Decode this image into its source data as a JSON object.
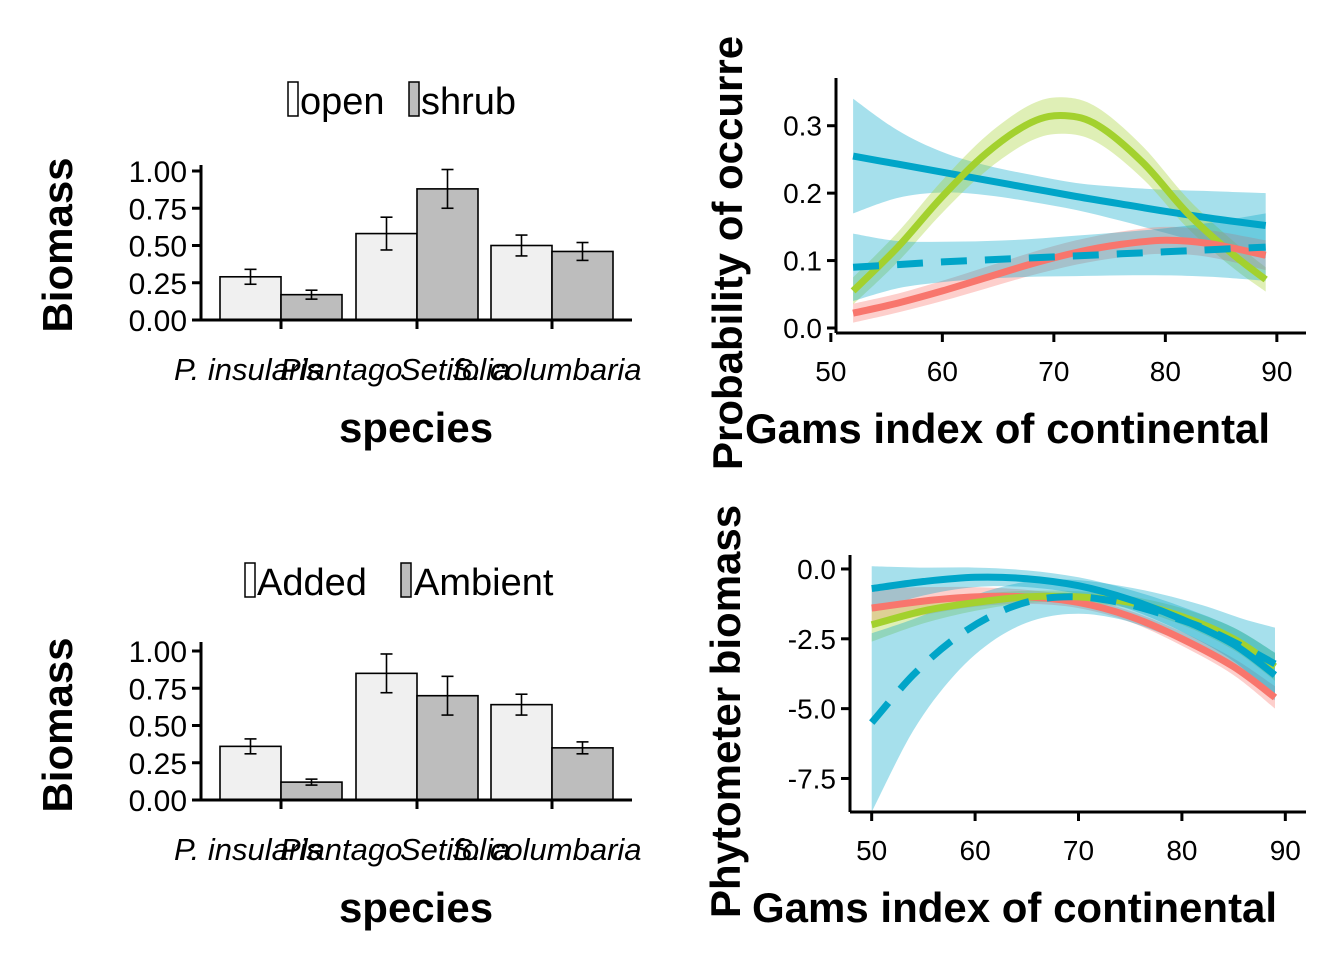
{
  "colors": {
    "added": "#f0f0f0",
    "ambient": "#bdbdbd",
    "red": "#F8766D",
    "green": "#A3D12E",
    "blue": "#00A5C8"
  },
  "chart_data": [
    {
      "id": "bar_top",
      "type": "bar",
      "legend": [
        "open",
        "shrub"
      ],
      "categories": [
        "P. insularis",
        "Plantago",
        "S. columbaria"
      ],
      "category_labels": [
        "P. insularis",
        "Plantago",
        "Setifolia",
        "S. columbaria"
      ],
      "series": [
        {
          "name": "open",
          "values": [
            0.29,
            0.58,
            0.5
          ],
          "errors": [
            0.05,
            0.11,
            0.07
          ]
        },
        {
          "name": "shrub",
          "values": [
            0.17,
            0.88,
            0.46
          ],
          "errors": [
            0.03,
            0.13,
            0.06
          ]
        }
      ],
      "xlabel": "species",
      "ylabel": "Biomass",
      "ylim": [
        0,
        1.0
      ],
      "yticks": [
        "0.00",
        "0.25",
        "0.50",
        "0.75",
        "1.00"
      ]
    },
    {
      "id": "bar_bottom",
      "type": "bar",
      "legend": [
        "Added",
        "Ambient"
      ],
      "categories": [
        "P. insularis",
        "Plantago",
        "S. columbaria"
      ],
      "category_labels": [
        "P. insularis",
        "Plantago",
        "Setifolia",
        "S. columbaria"
      ],
      "series": [
        {
          "name": "Added",
          "values": [
            0.36,
            0.85,
            0.64
          ],
          "errors": [
            0.05,
            0.13,
            0.07
          ]
        },
        {
          "name": "Ambient",
          "values": [
            0.12,
            0.7,
            0.35
          ],
          "errors": [
            0.02,
            0.13,
            0.04
          ]
        }
      ],
      "xlabel": "species",
      "ylabel": "Biomass",
      "ylim": [
        0,
        1.0
      ],
      "yticks": [
        "0.00",
        "0.25",
        "0.50",
        "0.75",
        "1.00"
      ]
    },
    {
      "id": "line_top",
      "type": "line",
      "xlabel": "Gams index of continental",
      "ylabel": "Probability of occurre",
      "xlim": [
        51,
        91
      ],
      "ylim": [
        0,
        0.35
      ],
      "xticks": [
        "50",
        "60",
        "70",
        "80",
        "90"
      ],
      "yticks": [
        "0.0",
        "0.1",
        "0.2",
        "0.3"
      ],
      "series": [
        {
          "color": "blue",
          "dash": false,
          "x": [
            52,
            56,
            60,
            64,
            68,
            72,
            76,
            80,
            84,
            89
          ],
          "y": [
            0.255,
            0.243,
            0.231,
            0.219,
            0.207,
            0.195,
            0.184,
            0.173,
            0.163,
            0.152
          ],
          "band": [
            0.085,
            0.05,
            0.03,
            0.022,
            0.02,
            0.02,
            0.025,
            0.032,
            0.04,
            0.048
          ]
        },
        {
          "color": "green",
          "dash": false,
          "x": [
            52,
            56,
            60,
            64,
            68,
            71,
            74,
            78,
            82,
            86,
            89
          ],
          "y": [
            0.055,
            0.12,
            0.195,
            0.26,
            0.305,
            0.315,
            0.3,
            0.245,
            0.17,
            0.11,
            0.072
          ],
          "band": [
            0.02,
            0.022,
            0.024,
            0.026,
            0.027,
            0.027,
            0.026,
            0.024,
            0.022,
            0.02,
            0.018
          ]
        },
        {
          "color": "red",
          "dash": false,
          "x": [
            52,
            56,
            60,
            64,
            68,
            72,
            76,
            80,
            84,
            89
          ],
          "y": [
            0.022,
            0.037,
            0.055,
            0.075,
            0.095,
            0.112,
            0.124,
            0.13,
            0.125,
            0.108
          ],
          "band": [
            0.014,
            0.014,
            0.015,
            0.016,
            0.017,
            0.018,
            0.019,
            0.02,
            0.02,
            0.022
          ]
        },
        {
          "color": "blue",
          "dash": true,
          "x": [
            52,
            56,
            60,
            64,
            68,
            72,
            76,
            80,
            84,
            89
          ],
          "y": [
            0.09,
            0.094,
            0.098,
            0.101,
            0.104,
            0.107,
            0.11,
            0.113,
            0.116,
            0.12
          ],
          "band": [
            0.05,
            0.035,
            0.03,
            0.028,
            0.028,
            0.03,
            0.032,
            0.035,
            0.04,
            0.05
          ]
        }
      ]
    },
    {
      "id": "line_bottom",
      "type": "line",
      "xlabel": "Gams index of continental",
      "ylabel": "Phytometer biomass",
      "xlim": [
        48,
        92
      ],
      "ylim": [
        -8.7,
        0.5
      ],
      "xticks": [
        "50",
        "60",
        "70",
        "80",
        "90"
      ],
      "yticks": [
        "0.0",
        "-2.5",
        "-5.0",
        "-7.5"
      ],
      "series": [
        {
          "color": "red",
          "dash": false,
          "x": [
            50,
            55,
            60,
            65,
            70,
            75,
            80,
            85,
            89
          ],
          "y": [
            -1.4,
            -1.15,
            -1.0,
            -1.0,
            -1.2,
            -1.7,
            -2.5,
            -3.5,
            -4.6
          ],
          "band": [
            0.7,
            0.5,
            0.35,
            0.25,
            0.2,
            0.2,
            0.25,
            0.3,
            0.4
          ]
        },
        {
          "color": "green",
          "dash": false,
          "x": [
            50,
            55,
            60,
            65,
            70,
            75,
            80,
            85,
            89
          ],
          "y": [
            -2.0,
            -1.5,
            -1.2,
            -1.0,
            -1.0,
            -1.2,
            -1.7,
            -2.5,
            -3.5
          ],
          "band": [
            0.6,
            0.45,
            0.3,
            0.22,
            0.2,
            0.22,
            0.3,
            0.4,
            0.5
          ]
        },
        {
          "color": "blue",
          "dash": false,
          "x": [
            50,
            55,
            60,
            65,
            70,
            75,
            80,
            85,
            89
          ],
          "y": [
            -0.7,
            -0.45,
            -0.3,
            -0.35,
            -0.6,
            -1.1,
            -1.8,
            -2.7,
            -3.8
          ],
          "band": [
            0.8,
            0.5,
            0.35,
            0.3,
            0.3,
            0.35,
            0.45,
            0.6,
            0.8
          ]
        },
        {
          "color": "blue",
          "dash": true,
          "x": [
            50,
            54,
            58,
            62,
            66,
            70,
            74,
            78,
            82,
            86,
            89
          ],
          "y": [
            -5.5,
            -3.8,
            -2.5,
            -1.6,
            -1.1,
            -1.0,
            -1.2,
            -1.6,
            -2.1,
            -2.8,
            -3.4
          ],
          "band": [
            3.2,
            2.0,
            1.3,
            0.9,
            0.7,
            0.6,
            0.6,
            0.7,
            0.8,
            1.0,
            1.3
          ]
        }
      ]
    }
  ]
}
